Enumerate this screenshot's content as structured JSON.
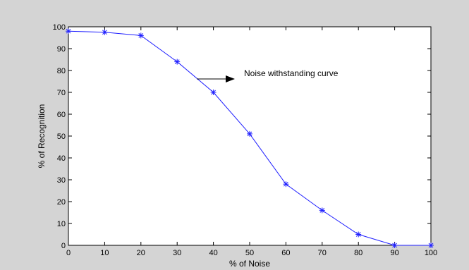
{
  "chart_data": {
    "type": "line",
    "xlabel": "% of Noise",
    "ylabel": "% of Recognition",
    "xlim": [
      0,
      100
    ],
    "ylim": [
      0,
      100
    ],
    "xticks": [
      0,
      10,
      20,
      30,
      40,
      50,
      60,
      70,
      80,
      90,
      100
    ],
    "yticks": [
      0,
      10,
      20,
      30,
      40,
      50,
      60,
      70,
      80,
      90,
      100
    ],
    "grid": false,
    "series": [
      {
        "marker": "asterisk",
        "color": "#1f1fff",
        "x": [
          0,
          10,
          20,
          30,
          40,
          50,
          60,
          70,
          80,
          90,
          100
        ],
        "y": [
          98,
          97.5,
          96,
          84,
          70,
          51,
          28,
          16,
          5,
          0,
          0
        ]
      }
    ],
    "annotation": {
      "text": "Noise withstanding curve",
      "arrow": "right"
    }
  },
  "colors": {
    "figure_background": "#d4d4d4",
    "axes_background": "#ffffff",
    "line": "#1f1fff"
  }
}
